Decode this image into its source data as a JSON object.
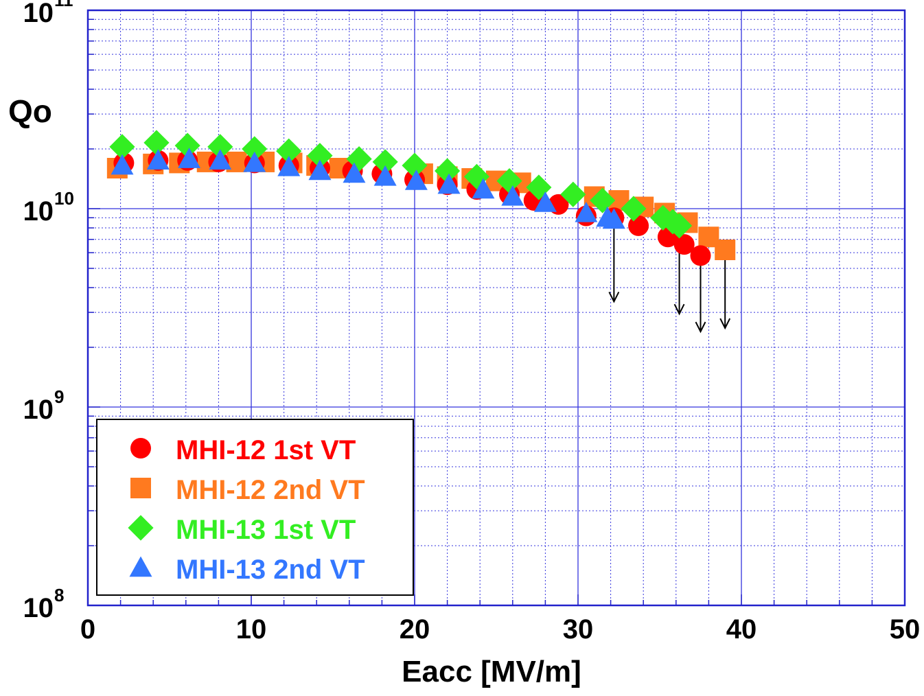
{
  "chart_data": {
    "type": "scatter",
    "xlabel": "Eacc  [MV/m]",
    "ylabel": "Qo",
    "xlim": [
      0,
      50
    ],
    "ylim": [
      100000000.0,
      100000000000.0
    ],
    "yscale": "log",
    "grid": true,
    "legend_position": "bottom-left",
    "x_ticks": [
      "0",
      "10",
      "20",
      "30",
      "40",
      "50"
    ],
    "y_ticks": [
      {
        "base": "10",
        "exp": "8",
        "value": 100000000.0
      },
      {
        "base": "10",
        "exp": "9",
        "value": 1000000000.0
      },
      {
        "base": "10",
        "exp": "10",
        "value": 10000000000.0
      },
      {
        "base": "10",
        "exp": "11",
        "value": 100000000000.0
      }
    ],
    "series": [
      {
        "name": "MHI-12 1st VT",
        "marker": "circle",
        "color": "#ff0000",
        "x": [
          2.2,
          4.3,
          6.1,
          8.0,
          10.2,
          12.3,
          14.2,
          16.2,
          18.0,
          20.0,
          22.0,
          23.8,
          25.8,
          27.3,
          28.8,
          30.5,
          32.2,
          33.7,
          35.5,
          36.5,
          37.5
        ],
        "y": [
          17000000000.0,
          17500000000.0,
          17500000000.0,
          17200000000.0,
          17000000000.0,
          16500000000.0,
          16000000000.0,
          15500000000.0,
          15000000000.0,
          14000000000.0,
          13200000000.0,
          12500000000.0,
          11800000000.0,
          11000000000.0,
          10500000000.0,
          9200000000.0,
          9000000000.0,
          8200000000.0,
          7200000000.0,
          6600000000.0,
          5800000000.0
        ],
        "arrow": {
          "from": 5800000000.0,
          "to": 2400000000.0
        }
      },
      {
        "name": "MHI-12 2nd VT",
        "marker": "square",
        "color": "#ff7a1f",
        "x": [
          1.8,
          4.0,
          5.6,
          7.3,
          9.1,
          10.8,
          12.5,
          14.0,
          15.4,
          20.5,
          22.0,
          23.5,
          25.0,
          26.5,
          31.0,
          32.5,
          34.0,
          35.3,
          36.7,
          38.0,
          39.0
        ],
        "y": [
          16000000000.0,
          16800000000.0,
          17000000000.0,
          17200000000.0,
          17200000000.0,
          17200000000.0,
          17000000000.0,
          16500000000.0,
          16000000000.0,
          15000000000.0,
          14500000000.0,
          14200000000.0,
          13800000000.0,
          13500000000.0,
          11500000000.0,
          11000000000.0,
          10200000000.0,
          9500000000.0,
          8500000000.0,
          7200000000.0,
          6200000000.0
        ],
        "arrow": {
          "from": 6200000000.0,
          "to": 2500000000.0
        }
      },
      {
        "name": "MHI-13 1st VT",
        "marker": "diamond",
        "color": "#33ee22",
        "x": [
          2.1,
          4.2,
          6.1,
          8.1,
          10.2,
          12.3,
          14.2,
          16.6,
          18.2,
          20.0,
          22.0,
          23.8,
          25.8,
          27.6,
          29.7,
          31.5,
          33.4,
          35.2,
          35.8,
          36.2
        ],
        "y": [
          20500000000.0,
          21500000000.0,
          20800000000.0,
          20500000000.0,
          20000000000.0,
          19500000000.0,
          18500000000.0,
          17800000000.0,
          17200000000.0,
          16500000000.0,
          15500000000.0,
          14500000000.0,
          13800000000.0,
          12800000000.0,
          11800000000.0,
          11000000000.0,
          10000000000.0,
          9000000000.0,
          8600000000.0,
          8200000000.0
        ],
        "arrow": {
          "from": 8200000000.0,
          "to": 2950000000.0
        }
      },
      {
        "name": "MHI-13 2nd VT",
        "marker": "triangle",
        "color": "#3377ff",
        "x": [
          2.1,
          4.3,
          6.2,
          8.1,
          10.2,
          12.3,
          14.2,
          16.3,
          18.2,
          20.1,
          22.1,
          24.2,
          26.0,
          28.0,
          30.5,
          31.8,
          32.2
        ],
        "y": [
          16500000000.0,
          17500000000.0,
          17800000000.0,
          17500000000.0,
          17000000000.0,
          16200000000.0,
          15500000000.0,
          15000000000.0,
          14500000000.0,
          13800000000.0,
          13200000000.0,
          12500000000.0,
          11500000000.0,
          10700000000.0,
          9500000000.0,
          9000000000.0,
          8800000000.0
        ],
        "arrow": {
          "from": 8800000000.0,
          "to": 3400000000.0
        }
      }
    ]
  },
  "colors": {
    "frame": "#2222cc",
    "grid": "#3333dd",
    "arrow": "#000000",
    "legend_border": "#000000",
    "axis_text": "#000000"
  }
}
